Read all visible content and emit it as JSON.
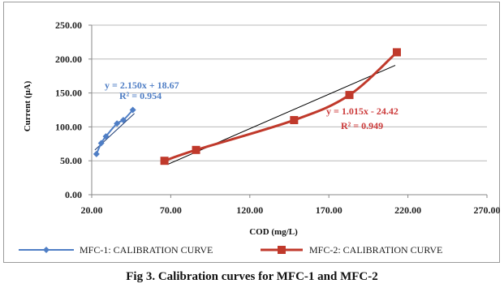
{
  "chart_data": {
    "type": "line",
    "xlabel": "COD (mg/L)",
    "ylabel": "Current (μA)",
    "xlim": [
      20,
      270
    ],
    "ylim": [
      0,
      250
    ],
    "x_ticks": [
      "20.00",
      "70.00",
      "120.00",
      "170.00",
      "220.00",
      "270.00"
    ],
    "y_ticks": [
      "0.00",
      "50.00",
      "100.00",
      "150.00",
      "200.00",
      "250.00"
    ],
    "grid": "horizontal",
    "legend": "bottom",
    "series": [
      {
        "name": "MFC-1: CALIBRATION CURVE",
        "color": "#4f7ec5",
        "marker": "diamond",
        "x": [
          23,
          26,
          29,
          36,
          40,
          46
        ],
        "y": [
          60,
          76,
          86,
          105,
          110,
          125
        ]
      },
      {
        "name": "MFC-2: CALIBRATION CURVE",
        "color": "#c0392b",
        "marker": "square",
        "x": [
          66,
          86,
          148,
          183,
          213
        ],
        "y": [
          50,
          66,
          110,
          147,
          210
        ]
      }
    ],
    "trendlines": [
      {
        "series": 0,
        "equation": "y = 2.150x + 18.67",
        "r2": "R² = 0.954",
        "x_range": [
          22,
          47
        ],
        "color": "#1a3a73"
      },
      {
        "series": 1,
        "equation": "y = 1.015x - 24.42",
        "r2": "R² = 0.949",
        "x_range": [
          68,
          212
        ],
        "color": "#000000"
      }
    ],
    "caption": "Fig 3. Calibration curves for MFC-1 and MFC-2"
  }
}
